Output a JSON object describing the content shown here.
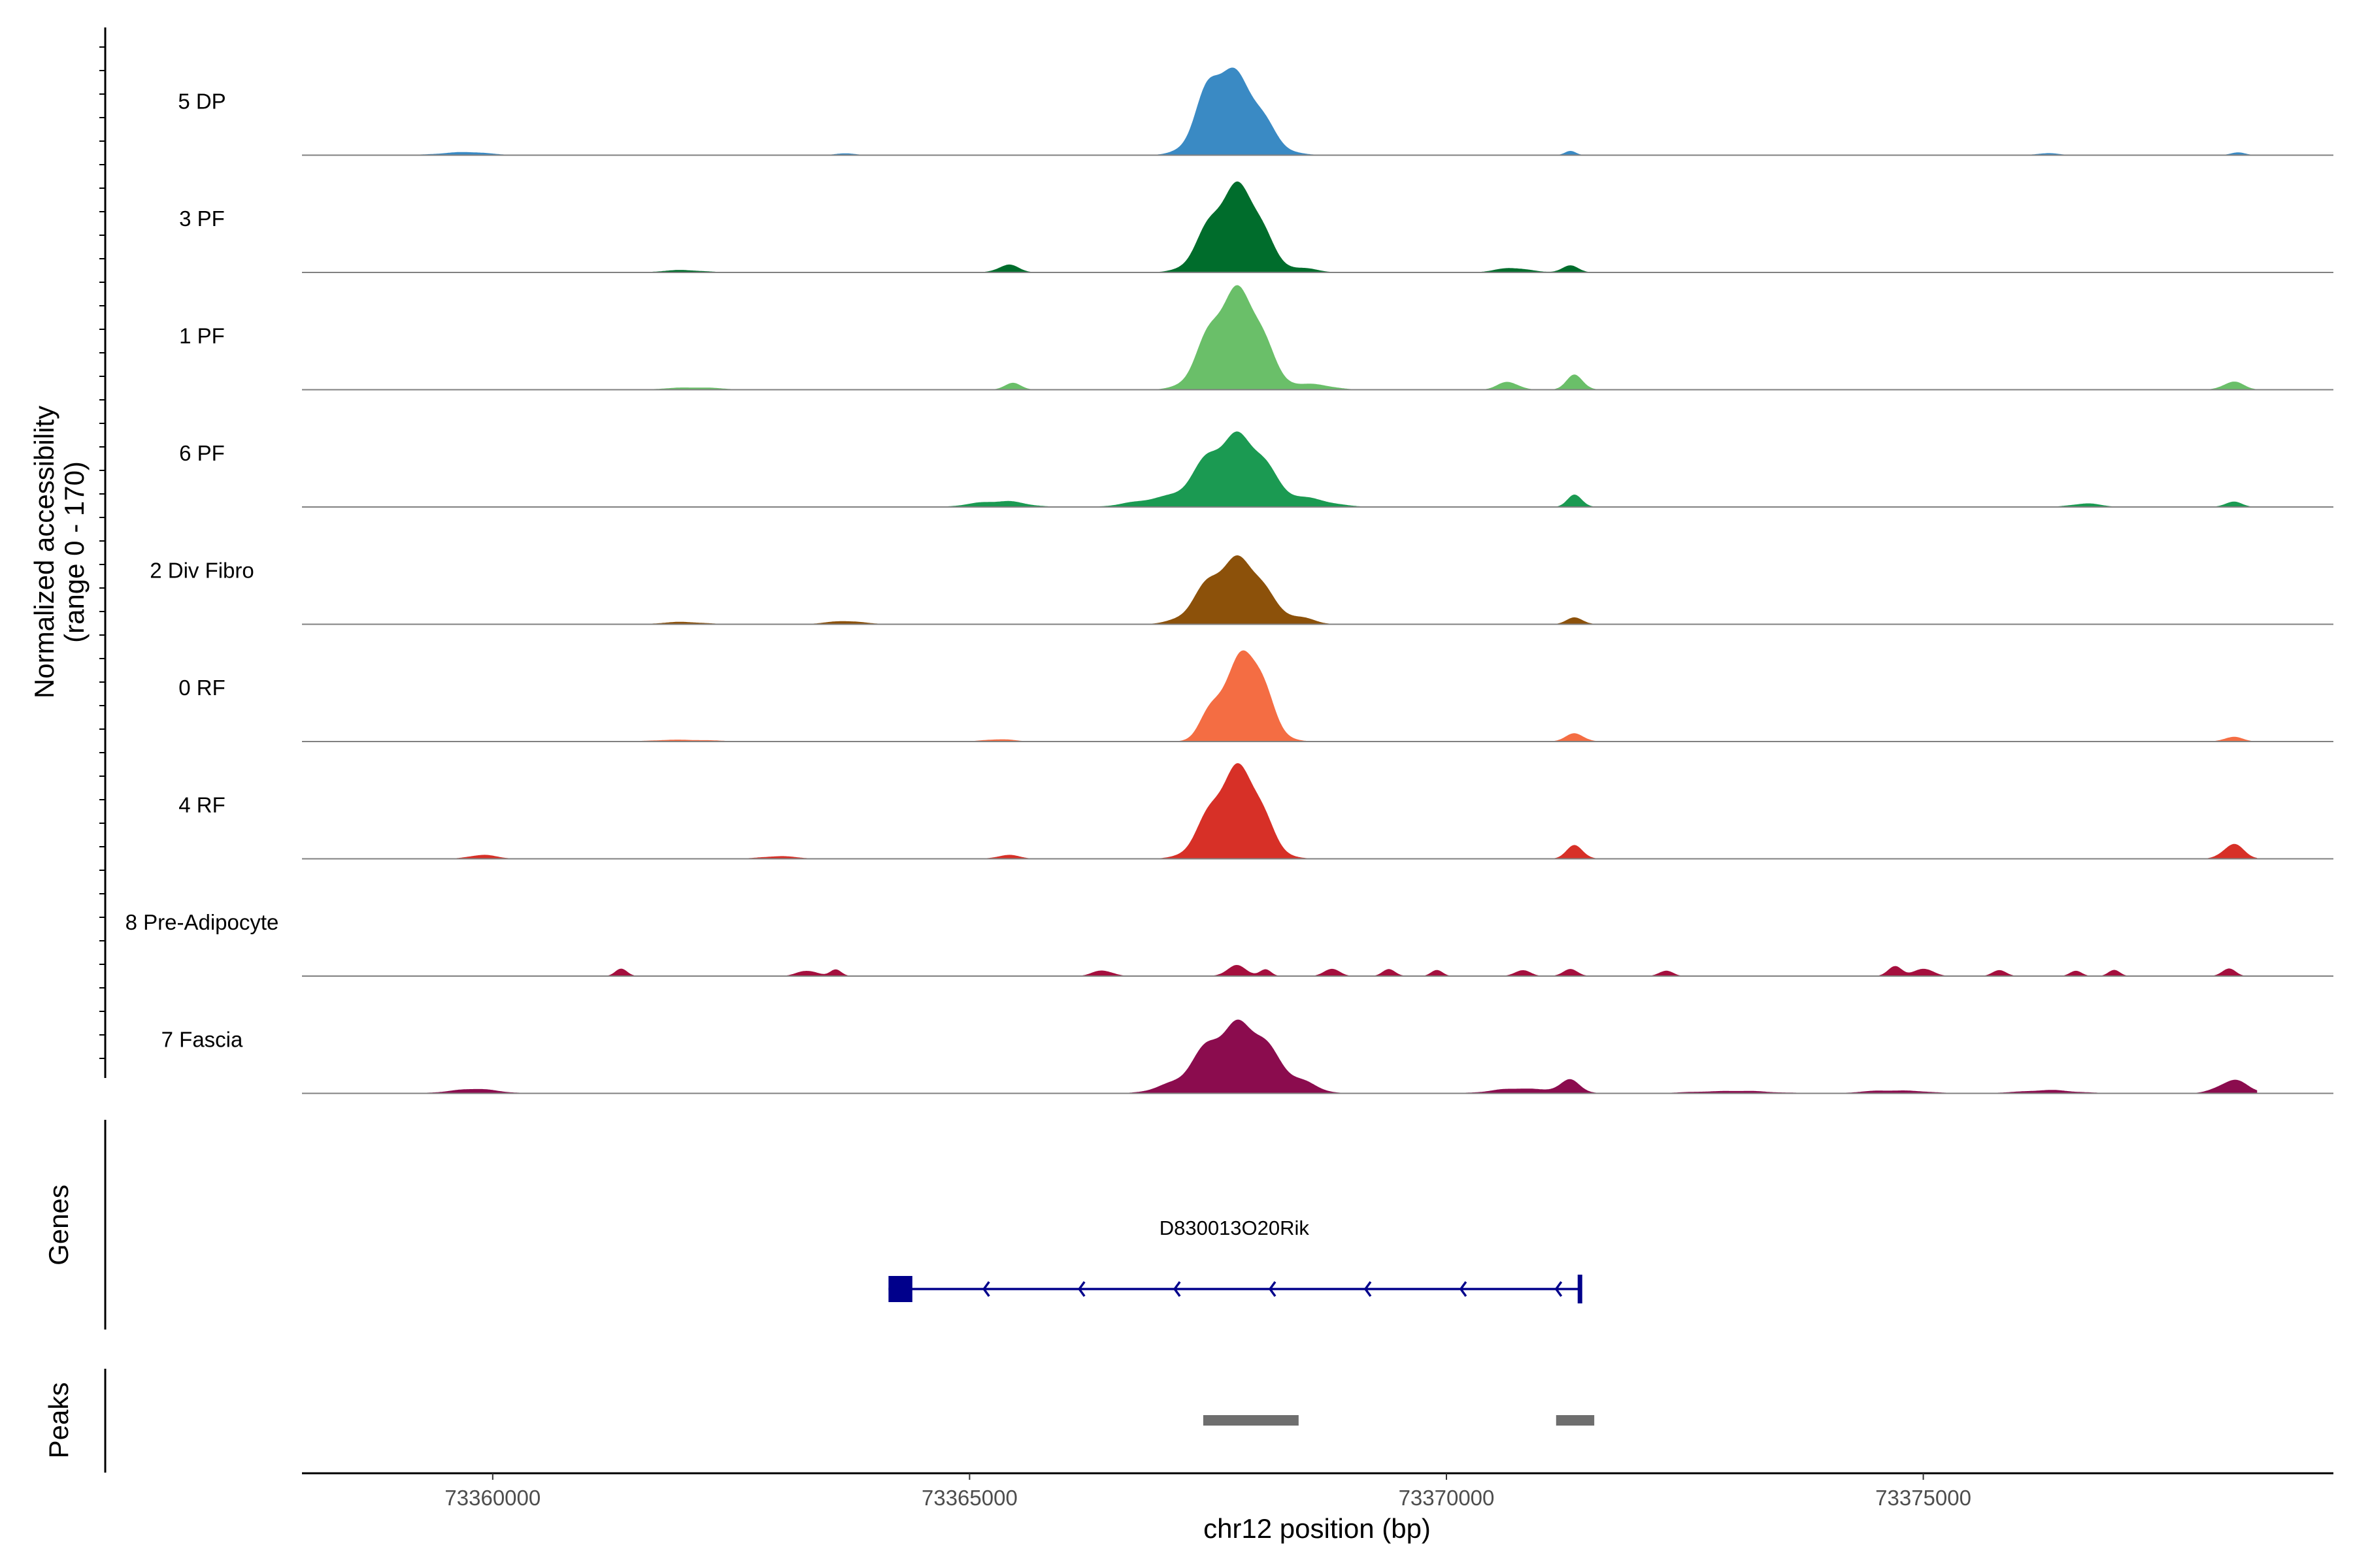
{
  "chart_data": {
    "type": "area",
    "region": {
      "chromosome": "chr12",
      "start": 73358000,
      "end": 73379300
    },
    "ylabel": [
      "Normalized accessibility",
      "(range 0 - 170)"
    ],
    "xlabel": "chr12 position (bp)",
    "ylim": [
      0,
      170
    ],
    "xticks": [
      73360000,
      73365000,
      73370000,
      73375000
    ],
    "xtick_labels": [
      "73360000",
      "73365000",
      "73370000",
      "73375000"
    ],
    "series": [
      {
        "name": "5 DP",
        "color": "#3a8ac4",
        "peaks": [
          [
            73367800,
            118,
            260
          ],
          [
            73367550,
            55,
            180
          ],
          [
            73371300,
            6,
            60
          ],
          [
            73359700,
            5,
            250
          ],
          [
            73363700,
            3,
            100
          ],
          [
            73378300,
            4,
            80
          ],
          [
            73376300,
            3,
            120
          ]
        ]
      },
      {
        "name": "3 PF",
        "color": "#006d2c",
        "peaks": [
          [
            73367850,
            130,
            220
          ],
          [
            73367550,
            45,
            200
          ],
          [
            73365400,
            12,
            110
          ],
          [
            73371300,
            10,
            90
          ],
          [
            73370700,
            7,
            180
          ],
          [
            73362000,
            4,
            200
          ],
          [
            73368500,
            6,
            150
          ]
        ]
      },
      {
        "name": "1 PF",
        "color": "#6abf69",
        "peaks": [
          [
            73367850,
            150,
            230
          ],
          [
            73367550,
            50,
            200
          ],
          [
            73371350,
            22,
            90
          ],
          [
            73370650,
            12,
            110
          ],
          [
            73365450,
            10,
            90
          ],
          [
            73378250,
            12,
            110
          ],
          [
            73362100,
            4,
            250
          ],
          [
            73368600,
            8,
            200
          ]
        ]
      },
      {
        "name": "6 PF",
        "color": "#1b9a52",
        "peaks": [
          [
            73367800,
            120,
            280
          ],
          [
            73367300,
            20,
            230
          ],
          [
            73371350,
            18,
            80
          ],
          [
            73365300,
            10,
            250
          ],
          [
            73368500,
            12,
            280
          ],
          [
            73366800,
            8,
            220
          ],
          [
            73378250,
            8,
            90
          ],
          [
            73376700,
            6,
            150
          ]
        ]
      },
      {
        "name": "2 Div Fibro",
        "color": "#8c510a",
        "peaks": [
          [
            73367850,
            100,
            240
          ],
          [
            73367500,
            35,
            220
          ],
          [
            73368450,
            10,
            150
          ],
          [
            73371350,
            10,
            90
          ],
          [
            73363700,
            5,
            200
          ],
          [
            73362000,
            4,
            200
          ]
        ]
      },
      {
        "name": "0 RF",
        "color": "#f46d43",
        "peaks": [
          [
            73367900,
            150,
            200
          ],
          [
            73367550,
            35,
            130
          ],
          [
            73371350,
            12,
            100
          ],
          [
            73378250,
            7,
            100
          ],
          [
            73365300,
            4,
            150
          ],
          [
            73362000,
            3,
            300
          ]
        ]
      },
      {
        "name": "4 RF",
        "color": "#d73027",
        "peaks": [
          [
            73367850,
            140,
            220
          ],
          [
            73367550,
            40,
            200
          ],
          [
            73371350,
            20,
            90
          ],
          [
            73378250,
            22,
            110
          ],
          [
            73359900,
            6,
            150
          ],
          [
            73365400,
            6,
            120
          ],
          [
            73363000,
            4,
            200
          ]
        ]
      },
      {
        "name": "8 Pre-Adipocyte",
        "color": "#a50f3e",
        "peaks": [
          [
            73361350,
            14,
            60
          ],
          [
            73363300,
            10,
            100
          ],
          [
            73363600,
            10,
            60
          ],
          [
            73366400,
            10,
            100
          ],
          [
            73367800,
            18,
            100
          ],
          [
            73368100,
            10,
            60
          ],
          [
            73368800,
            12,
            80
          ],
          [
            73369400,
            10,
            70
          ],
          [
            73369900,
            10,
            60
          ],
          [
            73370800,
            10,
            80
          ],
          [
            73371300,
            10,
            80
          ],
          [
            73372300,
            10,
            70
          ],
          [
            73374700,
            18,
            70
          ],
          [
            73375000,
            12,
            100
          ],
          [
            73375800,
            10,
            70
          ],
          [
            73376600,
            10,
            60
          ],
          [
            73377000,
            10,
            60
          ],
          [
            73378200,
            12,
            70
          ]
        ]
      },
      {
        "name": "7 Fascia",
        "color": "#8b0c4e",
        "peaks": [
          [
            73367850,
            110,
            280
          ],
          [
            73367400,
            30,
            280
          ],
          [
            73368400,
            18,
            200
          ],
          [
            73371300,
            18,
            110
          ],
          [
            73370800,
            8,
            300
          ],
          [
            73378250,
            20,
            160
          ],
          [
            73359800,
            7,
            250
          ],
          [
            73374700,
            5,
            300
          ],
          [
            73376300,
            5,
            300
          ],
          [
            73373000,
            4,
            400
          ]
        ]
      }
    ],
    "genes": [
      {
        "name": "D830013O20Rik",
        "start": 73364150,
        "end": 73371400,
        "strand": "-",
        "exon": [
          73364150,
          73364400
        ]
      }
    ],
    "peaks_track": [
      [
        73367450,
        73368450
      ],
      [
        73371150,
        73371550
      ]
    ],
    "panel_labels": {
      "genes": "Genes",
      "peaks": "Peaks"
    },
    "colors": {
      "gene": "#00008b",
      "peak": "#6e6e6e",
      "baseline": "#808080"
    }
  }
}
